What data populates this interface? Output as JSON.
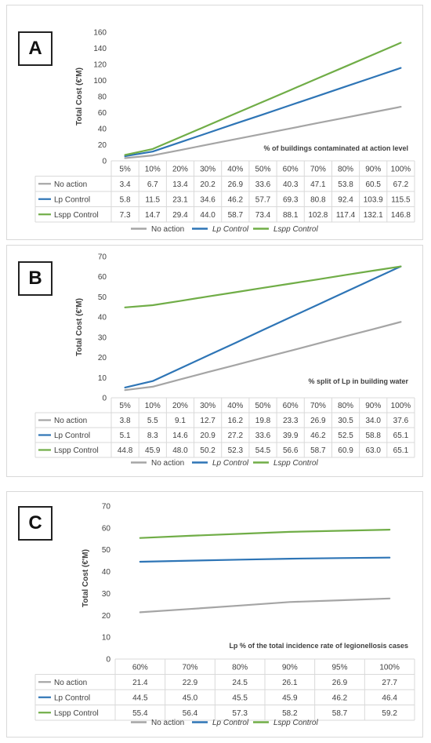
{
  "chart_data": [
    {
      "type": "line",
      "panel_label": "A",
      "title": "% of buildings contaminated at action level",
      "ylabel": "Total Cost (€'M)",
      "ylim": [
        0,
        160
      ],
      "yticks": [
        "0",
        "20",
        "40",
        "60",
        "80",
        "100",
        "120",
        "140",
        "160"
      ],
      "categories": [
        "5%",
        "10%",
        "20%",
        "30%",
        "40%",
        "50%",
        "60%",
        "70%",
        "80%",
        "90%",
        "100%"
      ],
      "grid": false,
      "legend_position": "bottom",
      "series": [
        {
          "name": "No action",
          "table_name": "No action",
          "color": "#a5a5a5",
          "values": [
            3.4,
            6.7,
            13.4,
            20.2,
            26.9,
            33.6,
            40.3,
            47.1,
            53.8,
            60.5,
            67.2
          ],
          "labels": [
            "3.4",
            "6.7",
            "13.4",
            "20.2",
            "26.9",
            "33.6",
            "40.3",
            "47.1",
            "53.8",
            "60.5",
            "67.2"
          ]
        },
        {
          "name": "Lp Control",
          "table_name": "Lp Control",
          "color": "#2e75b6",
          "values": [
            5.8,
            11.5,
            23.1,
            34.6,
            46.2,
            57.7,
            69.3,
            80.8,
            92.4,
            103.9,
            115.5
          ],
          "labels": [
            "5.8",
            "11.5",
            "23.1",
            "34.6",
            "46.2",
            "57.7",
            "69.3",
            "80.8",
            "92.4",
            "103.9",
            "115.5"
          ]
        },
        {
          "name": "Lspp Control",
          "table_name": "Lspp Control",
          "color": "#70ad47",
          "values": [
            7.3,
            14.7,
            29.4,
            44.0,
            58.7,
            73.4,
            88.1,
            102.8,
            117.4,
            132.1,
            146.8
          ],
          "labels": [
            "7.3",
            "14.7",
            "29.4",
            "44.0",
            "58.7",
            "73.4",
            "88.1",
            "102.8",
            "117.4",
            "132.1",
            "146.8"
          ]
        }
      ]
    },
    {
      "type": "line",
      "panel_label": "B",
      "title": "% split of Lp in building water",
      "ylabel": "Total Cost (€'M)",
      "ylim": [
        0,
        70
      ],
      "yticks": [
        "0",
        "10",
        "20",
        "30",
        "40",
        "50",
        "60",
        "70"
      ],
      "categories": [
        "5%",
        "10%",
        "20%",
        "30%",
        "40%",
        "50%",
        "60%",
        "70%",
        "80%",
        "90%",
        "100%"
      ],
      "grid": false,
      "legend_position": "bottom",
      "series": [
        {
          "name": "No action",
          "table_name": "No action",
          "color": "#a5a5a5",
          "values": [
            3.8,
            5.5,
            9.1,
            12.7,
            16.2,
            19.8,
            23.3,
            26.9,
            30.5,
            34.0,
            37.6
          ],
          "labels": [
            "3.8",
            "5.5",
            "9.1",
            "12.7",
            "16.2",
            "19.8",
            "23.3",
            "26.9",
            "30.5",
            "34.0",
            "37.6"
          ]
        },
        {
          "name": "Lp Control",
          "table_name": "Lp Control",
          "color": "#2e75b6",
          "values": [
            5.1,
            8.3,
            14.6,
            20.9,
            27.2,
            33.6,
            39.9,
            46.2,
            52.5,
            58.8,
            65.1
          ],
          "labels": [
            "5.1",
            "8.3",
            "14.6",
            "20.9",
            "27.2",
            "33.6",
            "39.9",
            "46.2",
            "52.5",
            "58.8",
            "65.1"
          ]
        },
        {
          "name": "Lspp Control",
          "table_name": "Lspp Control",
          "color": "#70ad47",
          "values": [
            44.8,
            45.9,
            48.0,
            50.2,
            52.3,
            54.5,
            56.6,
            58.7,
            60.9,
            63.0,
            65.1
          ],
          "labels": [
            "44.8",
            "45.9",
            "48.0",
            "50.2",
            "52.3",
            "54.5",
            "56.6",
            "58.7",
            "60.9",
            "63.0",
            "65.1"
          ]
        }
      ]
    },
    {
      "type": "line",
      "panel_label": "C",
      "title": "Lp % of the total incidence rate of legionellosis cases",
      "ylabel": "Total Cost (€'M)",
      "ylim": [
        0,
        70
      ],
      "yticks": [
        "0",
        "10",
        "20",
        "30",
        "40",
        "50",
        "60",
        "70"
      ],
      "categories": [
        "60%",
        "70%",
        "80%",
        "90%",
        "95%",
        "100%"
      ],
      "grid": false,
      "legend_position": "bottom",
      "series": [
        {
          "name": "No action",
          "table_name": "No action",
          "color": "#a5a5a5",
          "values": [
            21.4,
            22.9,
            24.5,
            26.1,
            26.9,
            27.7
          ],
          "labels": [
            "21.4",
            "22.9",
            "24.5",
            "26.1",
            "26.9",
            "27.7"
          ]
        },
        {
          "name": "Lp Control",
          "table_name": "Lp Control",
          "color": "#2e75b6",
          "values": [
            44.5,
            45.0,
            45.5,
            45.9,
            46.2,
            46.4
          ],
          "labels": [
            "44.5",
            "45.0",
            "45.5",
            "45.9",
            "46.2",
            "46.4"
          ]
        },
        {
          "name": "Lspp Control",
          "table_name": "Lspp Control",
          "color": "#70ad47",
          "values": [
            55.4,
            56.4,
            57.3,
            58.2,
            58.7,
            59.2
          ],
          "labels": [
            "55.4",
            "56.4",
            "57.3",
            "58.2",
            "58.7",
            "59.2"
          ]
        }
      ]
    }
  ]
}
